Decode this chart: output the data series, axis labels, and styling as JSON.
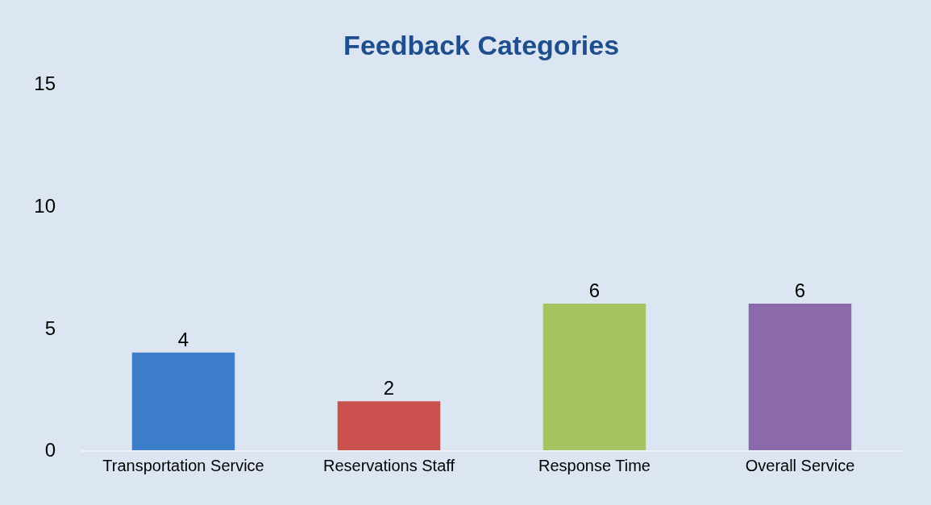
{
  "chart_data": {
    "type": "bar",
    "title": "Feedback Categories",
    "categories": [
      "Transportation Service",
      "Reservations Staff",
      "Response Time",
      "Overall Service"
    ],
    "values": [
      4,
      2,
      6,
      6
    ],
    "colors": [
      "#3b7dc9",
      "#c9504d",
      "#a3c45e",
      "#8a6aab"
    ],
    "ylim": [
      0,
      15
    ],
    "yticks": [
      0,
      5,
      10,
      15
    ],
    "data_labels": true,
    "grid": false
  }
}
